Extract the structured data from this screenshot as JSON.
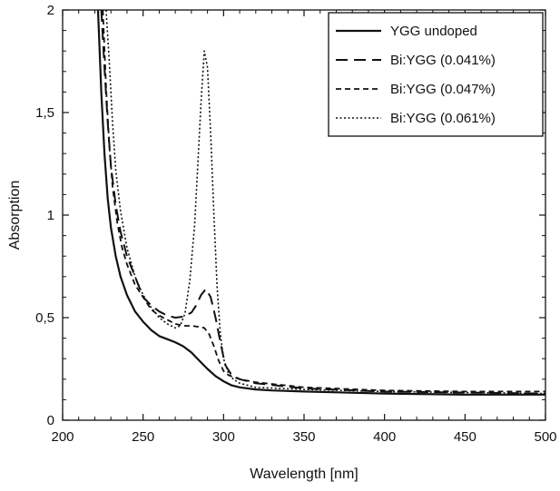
{
  "chart_data": {
    "type": "line",
    "title": "",
    "xlabel": "Wavelength [nm]",
    "ylabel": "Absorption",
    "xlim": [
      200,
      500
    ],
    "ylim": [
      0,
      2
    ],
    "x_ticks": [
      200,
      250,
      300,
      350,
      400,
      450,
      500
    ],
    "x_tick_labels": [
      "200",
      "250",
      "300",
      "350",
      "400",
      "450",
      "500"
    ],
    "y_ticks": [
      0,
      0.5,
      1,
      1.5,
      2
    ],
    "y_tick_labels": [
      "0",
      "0,5",
      "1",
      "1,5",
      "2"
    ],
    "grid": false,
    "legend_position": "top-right",
    "series": [
      {
        "name": "YGG undoped",
        "style": "solid",
        "x": [
          222,
          224,
          226,
          228,
          230,
          233,
          236,
          240,
          245,
          250,
          255,
          260,
          265,
          270,
          275,
          280,
          285,
          290,
          295,
          300,
          305,
          310,
          320,
          330,
          350,
          400,
          450,
          500
        ],
        "y": [
          2.0,
          1.6,
          1.3,
          1.08,
          0.94,
          0.8,
          0.7,
          0.61,
          0.53,
          0.48,
          0.44,
          0.41,
          0.395,
          0.38,
          0.36,
          0.33,
          0.29,
          0.25,
          0.215,
          0.19,
          0.17,
          0.16,
          0.15,
          0.145,
          0.14,
          0.13,
          0.125,
          0.125
        ]
      },
      {
        "name": "Bi:YGG (0.041%)",
        "style": "long-dash",
        "x": [
          224,
          226,
          228,
          230,
          233,
          236,
          240,
          245,
          250,
          255,
          260,
          265,
          270,
          275,
          280,
          283,
          286,
          289,
          292,
          295,
          298,
          301,
          305,
          310,
          320,
          350,
          400,
          450,
          500
        ],
        "y": [
          2.0,
          1.72,
          1.45,
          1.24,
          1.05,
          0.92,
          0.8,
          0.7,
          0.6,
          0.56,
          0.53,
          0.51,
          0.5,
          0.505,
          0.525,
          0.56,
          0.61,
          0.64,
          0.6,
          0.5,
          0.38,
          0.27,
          0.22,
          0.2,
          0.18,
          0.155,
          0.14,
          0.135,
          0.13
        ]
      },
      {
        "name": "Bi:YGG (0.047%)",
        "style": "short-dash",
        "x": [
          225,
          227,
          229,
          231,
          234,
          237,
          240,
          245,
          250,
          255,
          260,
          265,
          270,
          275,
          280,
          285,
          288,
          291,
          294,
          297,
          300,
          303,
          306,
          310,
          320,
          350,
          400,
          450,
          500
        ],
        "y": [
          2.0,
          1.62,
          1.34,
          1.14,
          0.96,
          0.84,
          0.76,
          0.66,
          0.6,
          0.54,
          0.51,
          0.49,
          0.47,
          0.46,
          0.46,
          0.455,
          0.45,
          0.42,
          0.36,
          0.29,
          0.24,
          0.22,
          0.21,
          0.2,
          0.185,
          0.16,
          0.145,
          0.14,
          0.14
        ]
      },
      {
        "name": "Bi:YGG (0.061%)",
        "style": "dotted",
        "x": [
          227,
          229,
          231,
          233,
          236,
          240,
          245,
          250,
          255,
          260,
          265,
          270,
          273,
          276,
          279,
          282,
          284,
          286,
          288,
          290,
          292,
          294,
          296,
          298,
          300,
          303,
          306,
          310,
          320,
          350,
          400,
          450,
          500
        ],
        "y": [
          2.0,
          1.75,
          1.45,
          1.22,
          1.02,
          0.84,
          0.7,
          0.61,
          0.55,
          0.5,
          0.47,
          0.45,
          0.46,
          0.52,
          0.68,
          0.95,
          1.25,
          1.55,
          1.8,
          1.72,
          1.4,
          1.0,
          0.65,
          0.42,
          0.3,
          0.23,
          0.2,
          0.18,
          0.16,
          0.15,
          0.14,
          0.135,
          0.13
        ]
      }
    ]
  }
}
